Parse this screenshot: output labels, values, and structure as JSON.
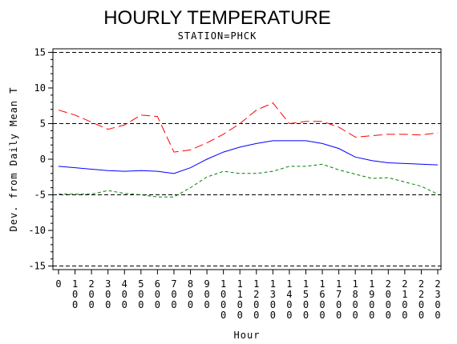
{
  "chart_data": {
    "type": "line",
    "title": "HOURLY TEMPERATURE",
    "subtitle": "STATION=PHCK",
    "xlabel": "Hour",
    "ylabel": "Dev. from Daily Mean T",
    "x": [
      0,
      100,
      200,
      300,
      400,
      500,
      600,
      700,
      800,
      900,
      1000,
      1100,
      1200,
      1300,
      1400,
      1500,
      1600,
      1700,
      1800,
      1900,
      2000,
      2100,
      2200,
      2300
    ],
    "x_tick_labels": [
      "0",
      "100",
      "200",
      "300",
      "400",
      "500",
      "600",
      "700",
      "800",
      "900",
      "1000",
      "1100",
      "1200",
      "1300",
      "1400",
      "1500",
      "1600",
      "1700",
      "1800",
      "1900",
      "2000",
      "2100",
      "2200",
      "2300"
    ],
    "y_ticks": [
      -15,
      -10,
      -5,
      0,
      5,
      10,
      15
    ],
    "ylim": [
      -15.5,
      15.5
    ],
    "xlim": [
      0,
      2300
    ],
    "reference_lines": [
      -15,
      -5,
      5,
      15
    ],
    "grid": false,
    "legend": "none",
    "series": [
      {
        "color": "#ff0000",
        "style": "long-dash",
        "values": [
          6.9,
          6.2,
          5.2,
          4.2,
          4.8,
          6.2,
          6.0,
          1.0,
          1.3,
          2.3,
          3.5,
          5.0,
          6.9,
          7.9,
          5.0,
          5.3,
          5.3,
          4.5,
          3.1,
          3.3,
          3.5,
          3.5,
          3.4,
          3.7
        ]
      },
      {
        "color": "#0000ff",
        "style": "solid",
        "values": [
          -1.0,
          -1.2,
          -1.4,
          -1.6,
          -1.7,
          -1.6,
          -1.7,
          -2.0,
          -1.2,
          0.0,
          1.0,
          1.7,
          2.2,
          2.6,
          2.6,
          2.6,
          2.2,
          1.5,
          0.3,
          -0.2,
          -0.5,
          -0.6,
          -0.7,
          -0.8
        ]
      },
      {
        "color": "#008000",
        "style": "short-dash",
        "values": [
          -4.9,
          -4.9,
          -4.9,
          -4.4,
          -4.8,
          -5.0,
          -5.3,
          -5.3,
          -4.0,
          -2.5,
          -1.7,
          -2.0,
          -2.0,
          -1.7,
          -1.0,
          -1.0,
          -0.7,
          -1.5,
          -2.1,
          -2.7,
          -2.6,
          -3.2,
          -3.8,
          -4.9
        ]
      }
    ]
  }
}
